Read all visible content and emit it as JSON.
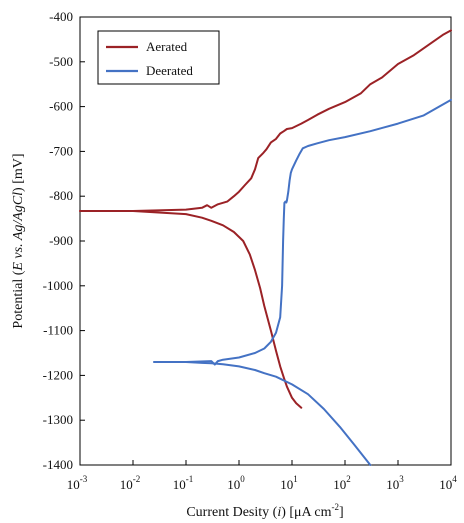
{
  "chart_data": {
    "type": "line",
    "title": "",
    "xlabel": "Current Desity (i) [μA cm-2]",
    "ylabel": "Potential (E vs. Ag/AgCl) [mV]",
    "x_scale": "log",
    "xlim": [
      0.001,
      10000
    ],
    "ylim": [
      -1400,
      -400
    ],
    "grid": false,
    "legend_position": "top-left",
    "x_ticks": [
      {
        "base": "10",
        "exp": "-3",
        "value": 0.001
      },
      {
        "base": "10",
        "exp": "-2",
        "value": 0.01
      },
      {
        "base": "10",
        "exp": "-1",
        "value": 0.1
      },
      {
        "base": "10",
        "exp": "0",
        "value": 1
      },
      {
        "base": "10",
        "exp": "1",
        "value": 10
      },
      {
        "base": "10",
        "exp": "2",
        "value": 100
      },
      {
        "base": "10",
        "exp": "3",
        "value": 1000
      },
      {
        "base": "10",
        "exp": "4",
        "value": 10000
      }
    ],
    "y_ticks": [
      "-400",
      "-500",
      "-600",
      "-700",
      "-800",
      "-900",
      "-1000",
      "-1100",
      "-1200",
      "-1300",
      "-1400"
    ],
    "series": [
      {
        "name": "Aerated",
        "color": "#9b2226",
        "branches": [
          {
            "x": [
              0.001,
              0.01,
              0.1,
              0.2,
              0.3,
              0.5,
              0.8,
              1.2,
              1.6,
              2.0,
              2.5,
              3.0,
              4.0,
              5.0,
              6.0,
              7.0,
              8.0,
              10.0,
              12.0,
              15.0
            ],
            "y": [
              -833,
              -833,
              -840,
              -848,
              -855,
              -865,
              -880,
              -900,
              -930,
              -965,
              -1005,
              -1045,
              -1100,
              -1145,
              -1180,
              -1205,
              -1225,
              -1250,
              -1262,
              -1272
            ]
          },
          {
            "x": [
              0.001,
              0.01,
              0.1,
              0.2,
              0.25,
              0.3,
              0.4,
              0.6,
              0.8,
              1.0,
              1.3,
              1.7,
              2.0,
              2.3,
              2.8,
              3.3,
              4.0,
              5.0,
              6.0,
              7.0,
              8.0,
              10.0,
              15.0,
              20.0,
              30.0,
              50.0,
              100.0,
              200.0,
              300.0,
              500.0,
              1000.0,
              2000.0,
              4000.0,
              7000.0,
              10000.0
            ],
            "y": [
              -833,
              -833,
              -830,
              -826,
              -820,
              -826,
              -818,
              -812,
              -800,
              -790,
              -775,
              -760,
              -740,
              -715,
              -705,
              -695,
              -680,
              -672,
              -660,
              -655,
              -650,
              -648,
              -638,
              -630,
              -618,
              -605,
              -590,
              -570,
              -550,
              -535,
              -505,
              -485,
              -460,
              -440,
              -430
            ]
          }
        ]
      },
      {
        "name": "Deerated",
        "color": "#4472c4",
        "branches": [
          {
            "x": [
              0.025,
              0.05,
              0.1,
              0.2,
              0.3,
              0.5,
              1.0,
              2.0,
              3.0,
              5.0,
              10.0,
              20.0,
              40.0,
              80.0,
              150.0,
              300.0
            ],
            "y": [
              -1170,
              -1170,
              -1170,
              -1172,
              -1173,
              -1175,
              -1180,
              -1188,
              -1195,
              -1203,
              -1220,
              -1242,
              -1275,
              -1315,
              -1355,
              -1400
            ]
          },
          {
            "x": [
              0.025,
              0.1,
              0.3,
              0.35,
              0.4,
              0.5,
              1.0,
              2.0,
              3.0,
              4.0,
              5.0,
              6.0,
              6.5,
              6.8,
              7.0,
              7.2,
              7.5,
              7.8,
              8.0,
              8.5,
              9.0,
              9.5,
              10.0,
              12.0,
              14.0,
              16.0,
              20.0,
              30.0,
              50.0,
              100.0,
              300.0,
              1000.0,
              3000.0,
              10000.0
            ],
            "y": [
              -1170,
              -1170,
              -1168,
              -1176,
              -1168,
              -1165,
              -1160,
              -1150,
              -1140,
              -1125,
              -1105,
              -1070,
              -1000,
              -900,
              -850,
              -815,
              -812,
              -814,
              -810,
              -790,
              -765,
              -748,
              -740,
              -720,
              -705,
              -693,
              -688,
              -682,
              -675,
              -668,
              -655,
              -638,
              -620,
              -585
            ]
          }
        ]
      }
    ]
  }
}
